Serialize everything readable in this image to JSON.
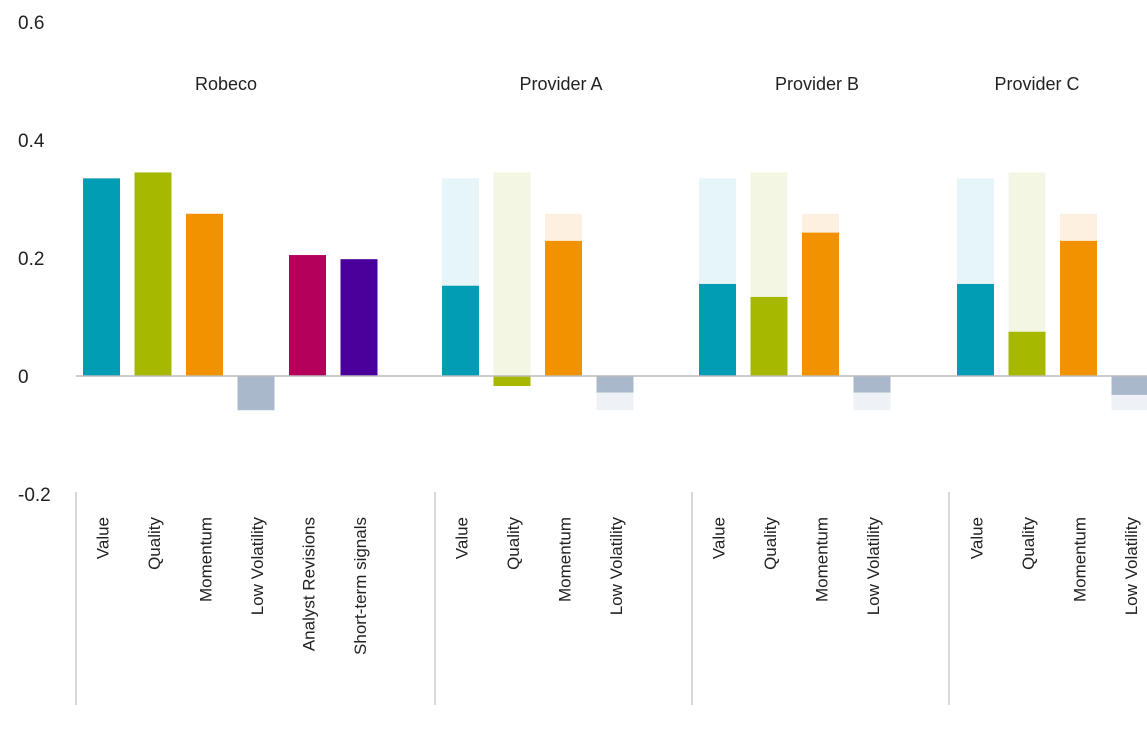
{
  "chart_data": {
    "type": "bar",
    "ylim": [
      -0.2,
      0.6
    ],
    "yticks": [
      {
        "value": 0.6,
        "label": "0.6"
      },
      {
        "value": 0.4,
        "label": "0.4"
      },
      {
        "value": 0.2,
        "label": "0.2"
      },
      {
        "value": 0,
        "label": "0"
      },
      {
        "value": -0.2,
        "label": "-0.2"
      }
    ],
    "colors": {
      "Value": "#009db5",
      "Quality": "#a6b900",
      "Momentum": "#f39200",
      "Low Volatility": "#a9b9cb",
      "Analyst Revisions": "#b5005b",
      "Short-term signals": "#4b009b",
      "faded": {
        "Value": "#e6f5f8",
        "Quality": "#f3f6e3",
        "Momentum": "#fdf0e1",
        "Low Volatility": "#eef1f5"
      },
      "axis": "#bbbbbb",
      "separator": "#cccccc"
    },
    "groups": [
      {
        "name": "Robeco",
        "bars": [
          {
            "category": "Value",
            "value": 0.335
          },
          {
            "category": "Quality",
            "value": 0.345
          },
          {
            "category": "Momentum",
            "value": 0.275
          },
          {
            "category": "Low Volatility",
            "value": -0.058
          },
          {
            "category": "Analyst Revisions",
            "value": 0.205
          },
          {
            "category": "Short-term signals",
            "value": 0.198
          }
        ]
      },
      {
        "name": "Provider A",
        "bars": [
          {
            "category": "Value",
            "value": 0.153,
            "reference": 0.335
          },
          {
            "category": "Quality",
            "value": -0.017,
            "reference": 0.345
          },
          {
            "category": "Momentum",
            "value": 0.229,
            "reference": 0.275
          },
          {
            "category": "Low Volatility",
            "value": -0.028,
            "reference": -0.058
          }
        ]
      },
      {
        "name": "Provider B",
        "bars": [
          {
            "category": "Value",
            "value": 0.156,
            "reference": 0.335
          },
          {
            "category": "Quality",
            "value": 0.134,
            "reference": 0.345
          },
          {
            "category": "Momentum",
            "value": 0.243,
            "reference": 0.275
          },
          {
            "category": "Low Volatility",
            "value": -0.028,
            "reference": -0.058
          }
        ]
      },
      {
        "name": "Provider C",
        "bars": [
          {
            "category": "Value",
            "value": 0.156,
            "reference": 0.335
          },
          {
            "category": "Quality",
            "value": 0.075,
            "reference": 0.345
          },
          {
            "category": "Momentum",
            "value": 0.229,
            "reference": 0.275
          },
          {
            "category": "Low Volatility",
            "value": -0.032,
            "reference": -0.058
          }
        ]
      }
    ]
  }
}
